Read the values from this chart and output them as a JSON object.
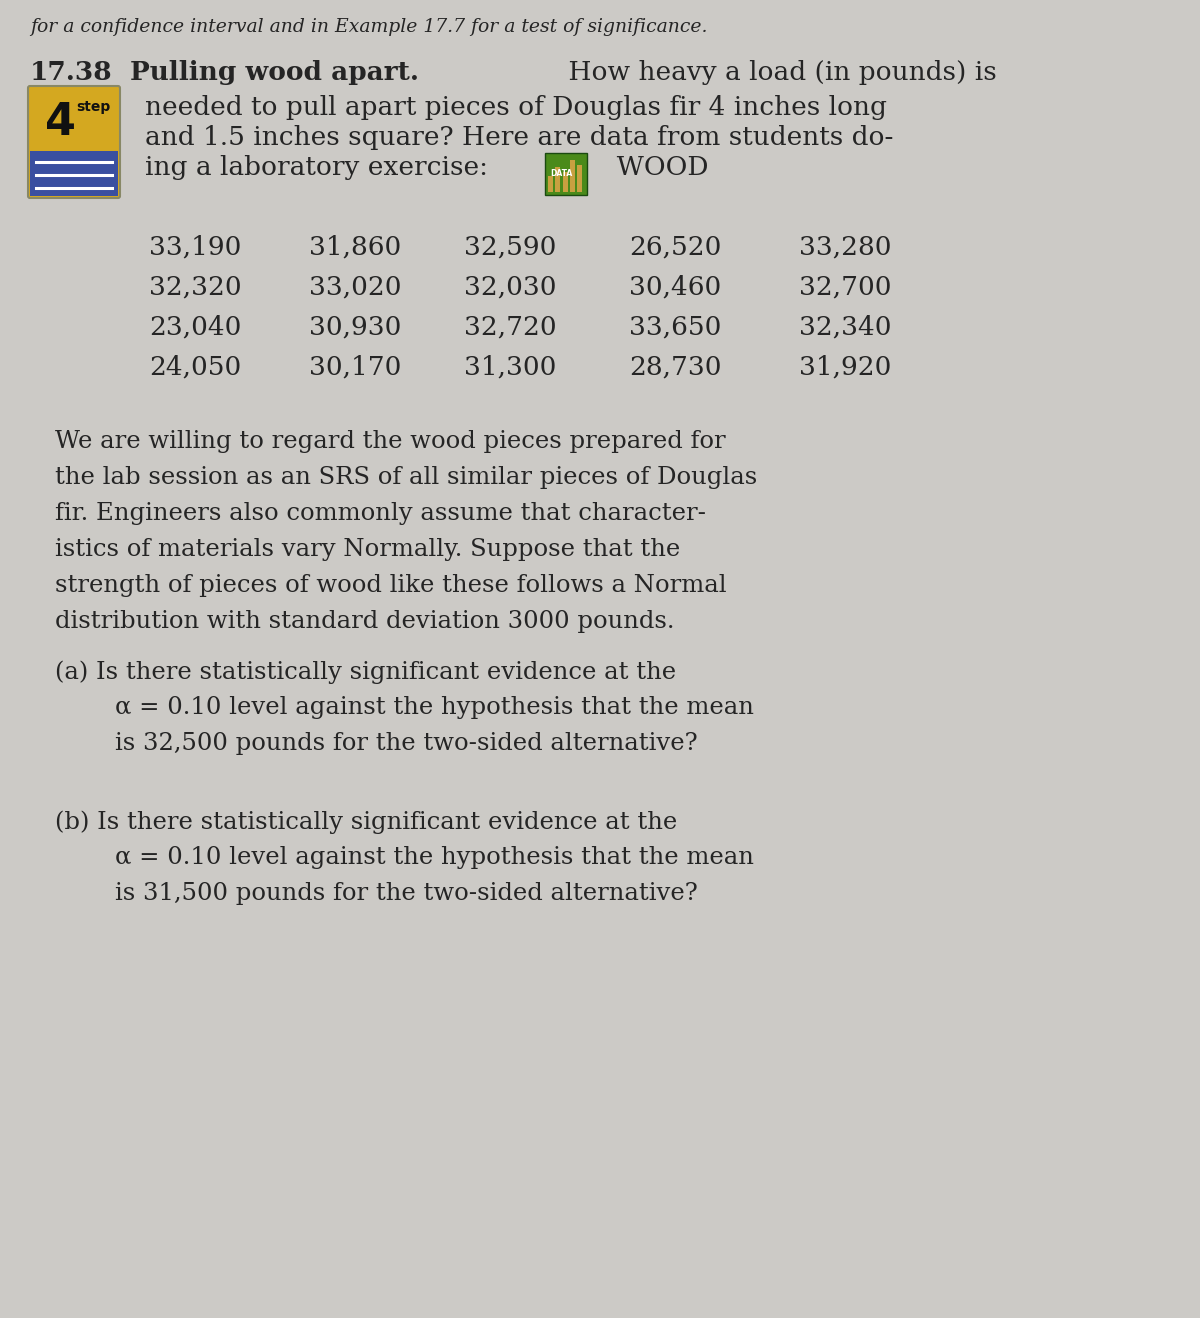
{
  "bg_color": "#cccac6",
  "top_italic_text": "for a confidence interval and in Example 17.7 for a test of significance.",
  "problem_number": "17.38",
  "problem_title": "Pulling wood apart.",
  "intro_line1": " How heavy a load (in pounds) is",
  "intro_line2": "needed to pull apart pieces of Douglas fir 4 inches long",
  "intro_line3": "and 1.5 inches square? Here are data from students do-",
  "intro_line4": "ing a laboratory exercise:",
  "wood_label": "WOOD",
  "data_rows": [
    [
      "33,190",
      "31,860",
      "32,590",
      "26,520",
      "33,280"
    ],
    [
      "32,320",
      "33,020",
      "32,030",
      "30,460",
      "32,700"
    ],
    [
      "23,040",
      "30,930",
      "32,720",
      "33,650",
      "32,340"
    ],
    [
      "24,050",
      "30,170",
      "31,300",
      "28,730",
      "31,920"
    ]
  ],
  "para1_lines": [
    "We are willing to regard the wood pieces prepared for",
    "the lab session as an SRS of all similar pieces of Douglas",
    "fir. Engineers also commonly assume that character-",
    "istics of materials vary Normally. Suppose that the",
    "strength of pieces of wood like these follows a Normal",
    "distribution with standard deviation 3000 pounds."
  ],
  "part_a_line1": "(a) Is there statistically significant evidence at the",
  "part_a_line2": "α = 0.10 level against the hypothesis that the mean",
  "part_a_line3": "is 32,500 pounds for the two-sided alternative?",
  "part_b_line1": "(b) Is there statistically significant evidence at the",
  "part_b_line2": "α = 0.10 level against the hypothesis that the mean",
  "part_b_line3": "is 31,500 pounds for the two-sided alternative?",
  "font_size_top": 13.5,
  "font_size_heading": 19,
  "font_size_body": 17.5,
  "font_size_data": 19,
  "text_color": "#252525",
  "icon4step_yellow": "#d4a820",
  "icon4step_blue": "#3a4fa0",
  "icon_data_green": "#4a8a1a",
  "icon_data_tan": "#c8a040"
}
